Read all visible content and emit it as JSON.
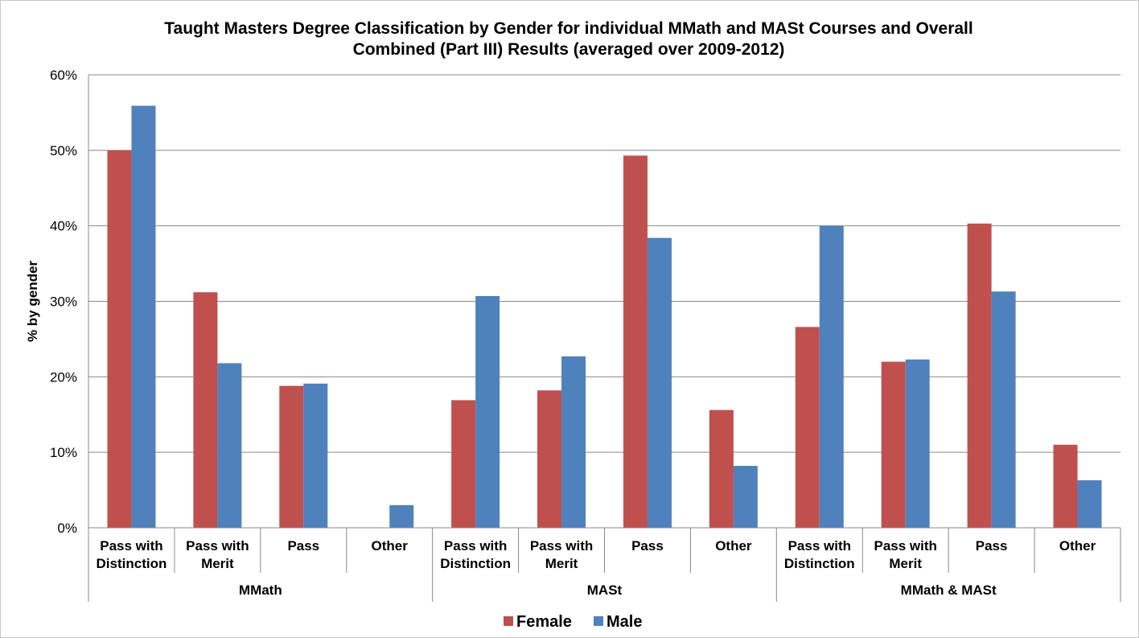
{
  "chart_data": {
    "type": "bar",
    "title_lines": [
      "Taught Masters Degree Classification by Gender for individual MMath and MASt Courses and Overall",
      "Combined (Part III) Results (averaged over 2009-2012)"
    ],
    "ylabel": "% by gender",
    "ylim": [
      0,
      60
    ],
    "yticks": [
      0,
      10,
      20,
      30,
      40,
      50,
      60
    ],
    "ytick_labels": [
      "0%",
      "10%",
      "20%",
      "30%",
      "40%",
      "50%",
      "60%"
    ],
    "grid": true,
    "legend_position": "bottom",
    "groups": [
      {
        "label": "MMath",
        "categories": [
          [
            "Pass with",
            "Distinction"
          ],
          [
            "Pass with",
            "Merit"
          ],
          [
            "Pass"
          ],
          [
            "Other"
          ]
        ]
      },
      {
        "label": "MASt",
        "categories": [
          [
            "Pass with",
            "Distinction"
          ],
          [
            "Pass with",
            "Merit"
          ],
          [
            "Pass"
          ],
          [
            "Other"
          ]
        ]
      },
      {
        "label": "MMath & MASt",
        "categories": [
          [
            "Pass with",
            "Distinction"
          ],
          [
            "Pass with",
            "Merit"
          ],
          [
            "Pass"
          ],
          [
            "Other"
          ]
        ]
      }
    ],
    "series": [
      {
        "name": "Female",
        "color": "#c0504d",
        "values": [
          50.0,
          31.2,
          18.8,
          0.0,
          16.9,
          18.2,
          49.3,
          15.6,
          26.6,
          22.0,
          40.3,
          11.0
        ]
      },
      {
        "name": "Male",
        "color": "#4f81bd",
        "values": [
          55.9,
          21.8,
          19.1,
          3.0,
          30.7,
          22.7,
          38.4,
          8.2,
          40.0,
          22.3,
          31.3,
          6.3
        ]
      }
    ]
  }
}
